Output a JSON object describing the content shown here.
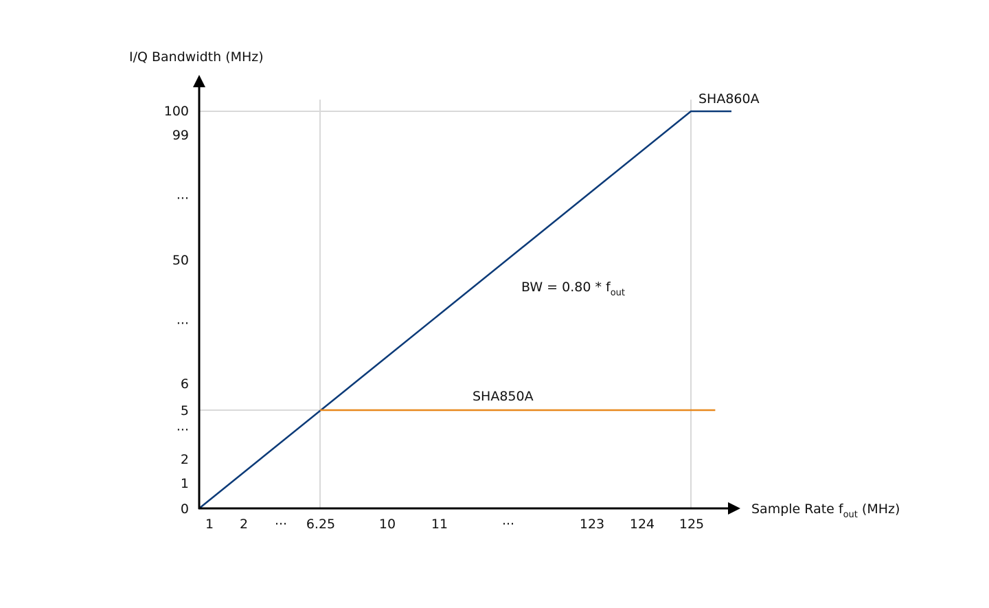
{
  "chart_data": {
    "type": "line",
    "title": "",
    "xlabel": "Sample Rate f",
    "xlabel_sub": "out",
    "xlabel_unit": " (MHz)",
    "ylabel": "I/Q Bandwidth (MHz)",
    "x_ticks": [
      "1",
      "2",
      "···",
      "6.25",
      "10",
      "11",
      "···",
      "123",
      "124",
      "125"
    ],
    "y_ticks": [
      "100",
      "99",
      "···",
      "50",
      "···",
      "6",
      "5",
      "···",
      "2",
      "1",
      "0"
    ],
    "grid": "reference lines at x=6.25, x=125, y=5, y=100",
    "series": [
      {
        "name": "SHA860A",
        "color": "#0b3a78",
        "points": [
          [
            0,
            0
          ],
          [
            125,
            100
          ],
          [
            130,
            100
          ]
        ]
      },
      {
        "name": "SHA850A",
        "color": "#e8891e",
        "points": [
          [
            6.25,
            5
          ],
          [
            128,
            5
          ]
        ]
      }
    ],
    "annotation": {
      "text": "BW = 0.80 * f",
      "sub": "out"
    }
  }
}
